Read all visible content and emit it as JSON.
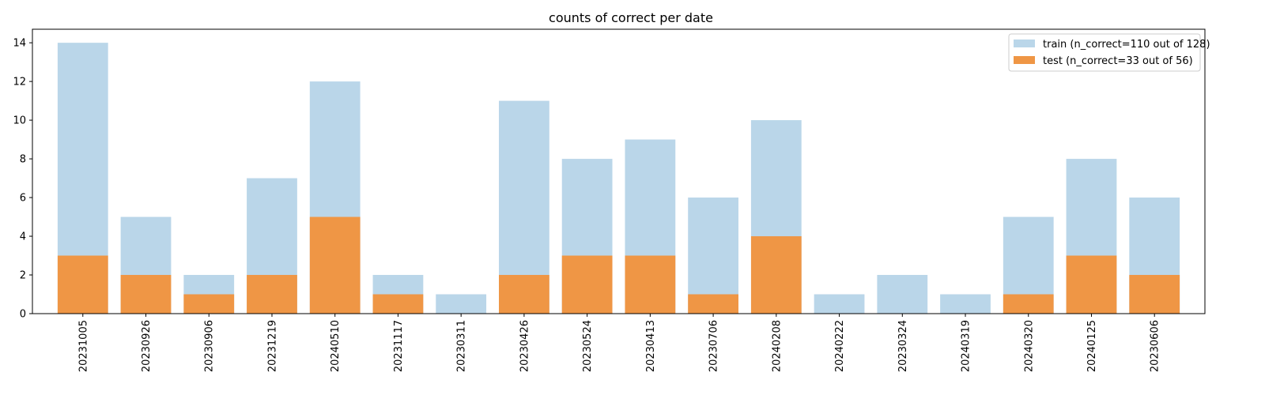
{
  "chart_data": {
    "type": "bar",
    "title": "counts of correct per date",
    "xlabel": "",
    "ylabel": "",
    "categories": [
      "20231005",
      "20230926",
      "20230906",
      "20231219",
      "20240510",
      "20231117",
      "20230311",
      "20230426",
      "20230524",
      "20230413",
      "20230706",
      "20240208",
      "20240222",
      "20230324",
      "20240319",
      "20240320",
      "20240125",
      "20230606"
    ],
    "series": [
      {
        "name": "train (n_correct=110 out of 128)",
        "color": "#bad6e9",
        "values": [
          14,
          5,
          2,
          7,
          12,
          2,
          1,
          11,
          8,
          9,
          6,
          10,
          1,
          2,
          1,
          5,
          8,
          6
        ]
      },
      {
        "name": "test (n_correct=33 out of 56)",
        "color": "#ef9645",
        "values": [
          3,
          2,
          1,
          2,
          5,
          1,
          0,
          2,
          3,
          3,
          1,
          4,
          0,
          0,
          0,
          1,
          3,
          2
        ]
      }
    ],
    "ylim": [
      0,
      14.7
    ],
    "yticks": [
      0,
      2,
      4,
      6,
      8,
      10,
      12,
      14
    ],
    "legend_position": "top-right",
    "grid": false
  }
}
